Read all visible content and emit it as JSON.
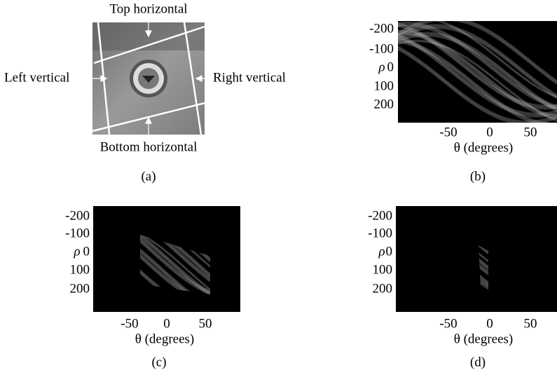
{
  "panel_a": {
    "labels": {
      "top": "Top horizontal",
      "left": "Left vertical",
      "right": "Right vertical",
      "bottom": "Bottom horizontal"
    },
    "caption": "(a)"
  },
  "panel_b": {
    "yticks": [
      "-200",
      "-100",
      "0",
      "100",
      "200"
    ],
    "ylabel": "ρ",
    "xticks": [
      "-50",
      "0",
      "50"
    ],
    "xlabel": "θ  (degrees)",
    "caption": "(b)"
  },
  "panel_c": {
    "yticks": [
      "-200",
      "-100",
      "0",
      "100",
      "200"
    ],
    "ylabel": "ρ",
    "xticks": [
      "-50",
      "0",
      "50"
    ],
    "xlabel": "θ  (degrees)",
    "caption": "(c)"
  },
  "panel_d": {
    "yticks": [
      "-200",
      "-100",
      "0",
      "100",
      "200"
    ],
    "ylabel": "ρ",
    "xticks": [
      "-50",
      "0",
      "50"
    ],
    "xlabel": "θ  (degrees)",
    "caption": "(d)"
  }
}
